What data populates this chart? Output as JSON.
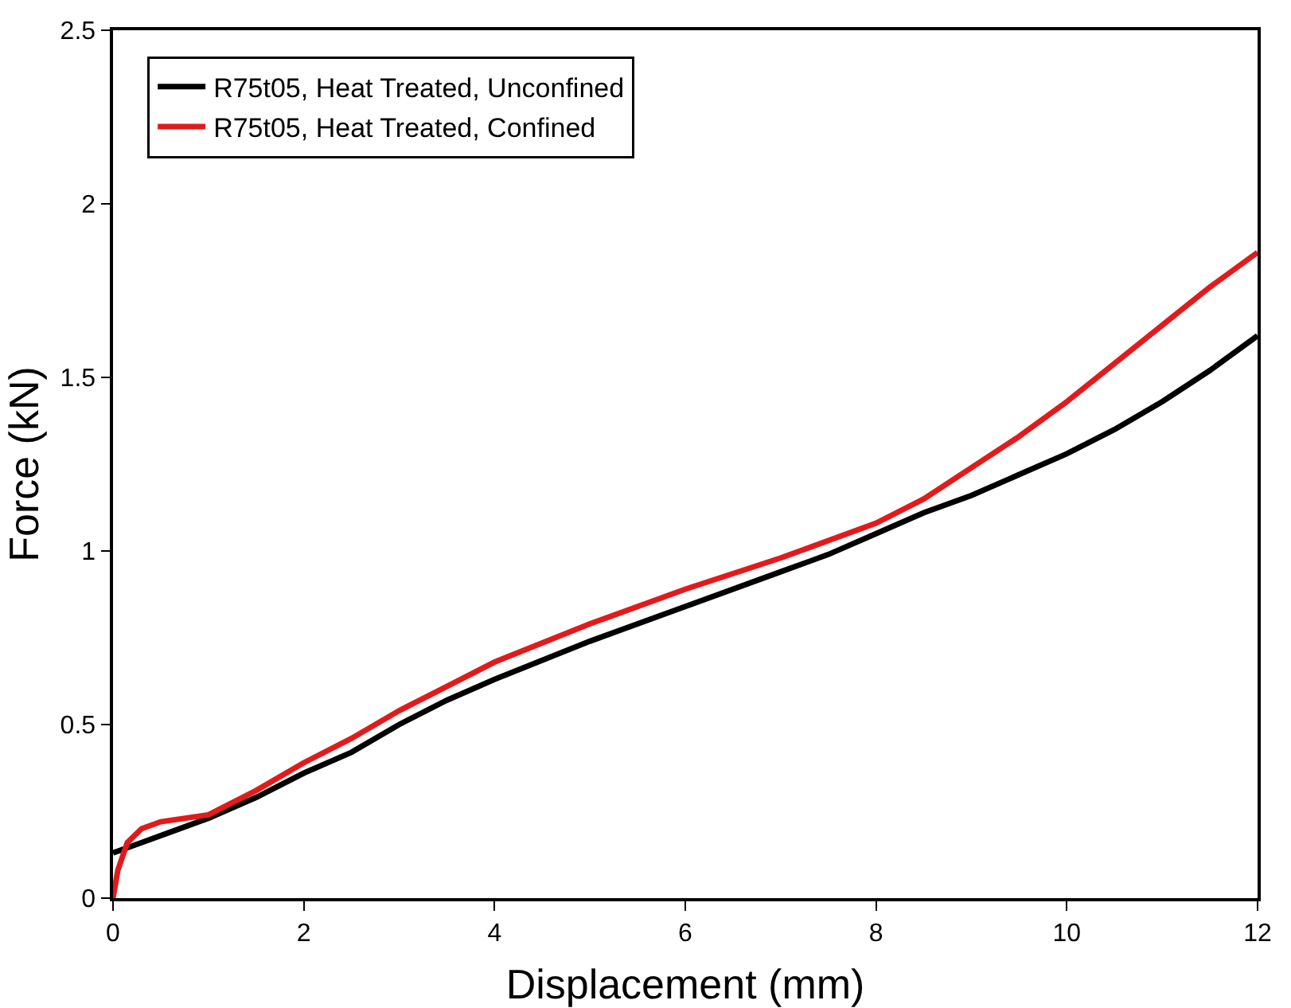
{
  "chart_data": {
    "type": "line",
    "xlabel": "Displacement (mm)",
    "ylabel": "Force (kN)",
    "xlim": [
      0,
      12
    ],
    "ylim": [
      0,
      2.5
    ],
    "xticks": [
      0,
      2,
      4,
      6,
      8,
      10,
      12
    ],
    "yticks": [
      0,
      0.5,
      1,
      1.5,
      2,
      2.5
    ],
    "grid": false,
    "legend": "top left",
    "line_style": "solid",
    "marker": "none",
    "series": [
      {
        "name": "R75t05, Heat Treated, Unconfined",
        "color": "#000000",
        "x": [
          0,
          0.3,
          0.6,
          1,
          1.5,
          2,
          2.5,
          3,
          3.5,
          4,
          5,
          6,
          7,
          7.5,
          8,
          8.5,
          9,
          9.5,
          10,
          10.5,
          11,
          11.5,
          12
        ],
        "values": [
          0.13,
          0.16,
          0.19,
          0.23,
          0.29,
          0.36,
          0.42,
          0.5,
          0.57,
          0.63,
          0.74,
          0.84,
          0.94,
          0.99,
          1.05,
          1.11,
          1.16,
          1.22,
          1.28,
          1.35,
          1.43,
          1.52,
          1.62
        ]
      },
      {
        "name": "R75t05, Heat Treated, Confined",
        "color": "#e31a1c",
        "x": [
          0,
          0.05,
          0.15,
          0.3,
          0.5,
          1,
          1.5,
          2,
          2.5,
          3,
          3.5,
          4,
          5,
          6,
          7,
          8,
          8.5,
          9,
          9.5,
          10,
          10.5,
          11,
          11.5,
          12
        ],
        "values": [
          0,
          0.08,
          0.16,
          0.2,
          0.22,
          0.24,
          0.31,
          0.39,
          0.46,
          0.54,
          0.61,
          0.68,
          0.79,
          0.89,
          0.98,
          1.08,
          1.15,
          1.24,
          1.33,
          1.43,
          1.54,
          1.65,
          1.76,
          1.86
        ]
      }
    ]
  }
}
